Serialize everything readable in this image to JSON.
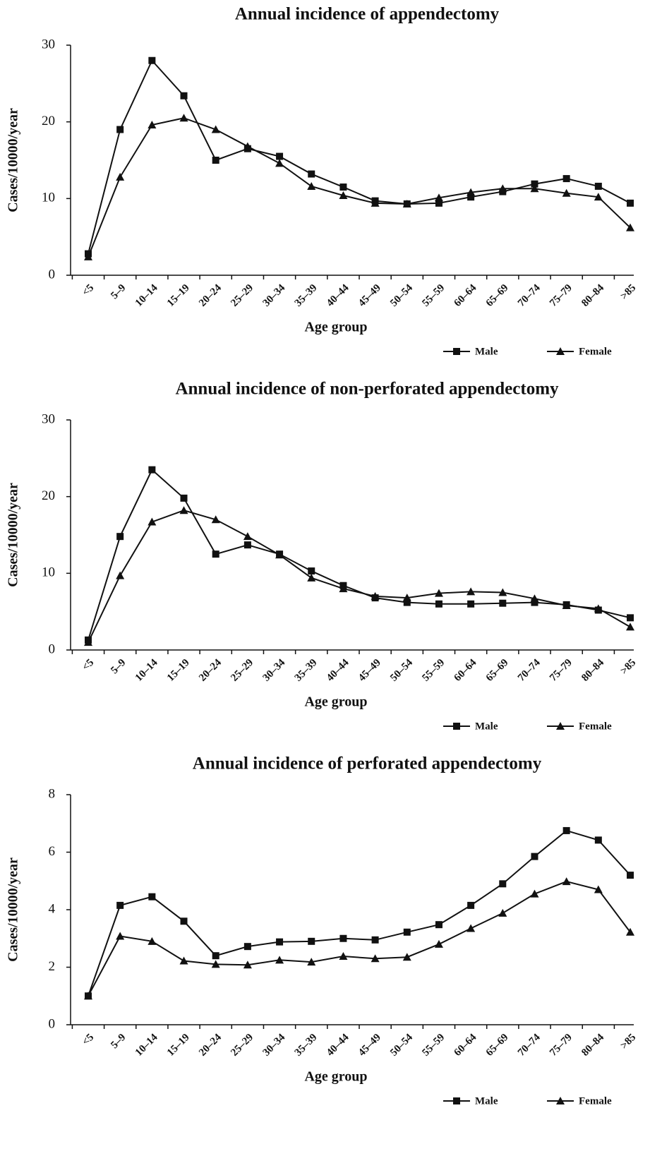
{
  "chart_data": [
    {
      "type": "line",
      "title": "Annual incidence of appendectomy",
      "x_label": "Age group",
      "y_label": "Cases/10000/year",
      "categories": [
        "<5",
        "5–9",
        "10–14",
        "15–19",
        "20–24",
        "25–29",
        "30–34",
        "35–39",
        "40–44",
        "45–49",
        "50–54",
        "55–59",
        "60–64",
        "65–69",
        "70–74",
        "75–79",
        "80–84",
        ">85"
      ],
      "ylim": [
        0,
        30
      ],
      "yticks": [
        0,
        10,
        20,
        30
      ],
      "series": [
        {
          "name": "Male",
          "color": "#111111",
          "marker": "square",
          "values": [
            2.8,
            19,
            28,
            23.4,
            15,
            16.5,
            15.5,
            13.2,
            11.5,
            9.7,
            9.3,
            9.4,
            10.2,
            10.9,
            11.9,
            12.6,
            11.6,
            9.4
          ]
        },
        {
          "name": "Female",
          "color": "#111111",
          "marker": "triangle",
          "values": [
            2.4,
            12.8,
            19.6,
            20.5,
            19,
            16.8,
            14.6,
            11.6,
            10.4,
            9.4,
            9.3,
            10.1,
            10.8,
            11.3,
            11.3,
            10.7,
            10.2,
            6.2
          ]
        }
      ]
    },
    {
      "type": "line",
      "title": "Annual incidence of non-perforated appendectomy",
      "x_label": "Age group",
      "y_label": "Cases/10000/year",
      "categories": [
        "<5",
        "5–9",
        "10–14",
        "15–19",
        "20–24",
        "25–29",
        "30–34",
        "35–39",
        "40–44",
        "45–49",
        "50–54",
        "55–59",
        "60–64",
        "65–69",
        "70–74",
        "75–79",
        "80–84",
        ">85"
      ],
      "ylim": [
        0,
        30
      ],
      "yticks": [
        0,
        10,
        20,
        30
      ],
      "series": [
        {
          "name": "Male",
          "color": "#111111",
          "marker": "square",
          "values": [
            1.3,
            14.8,
            23.5,
            19.8,
            12.5,
            13.7,
            12.5,
            10.3,
            8.4,
            6.8,
            6.2,
            6.0,
            6.0,
            6.1,
            6.2,
            5.9,
            5.2,
            4.2
          ]
        },
        {
          "name": "Female",
          "color": "#111111",
          "marker": "triangle",
          "values": [
            1.0,
            9.7,
            16.7,
            18.2,
            17.0,
            14.8,
            12.4,
            9.4,
            8.0,
            7.0,
            6.8,
            7.4,
            7.6,
            7.5,
            6.7,
            5.8,
            5.4,
            3.0
          ]
        }
      ]
    },
    {
      "type": "line",
      "title": "Annual incidence of perforated appendectomy",
      "x_label": "Age group",
      "y_label": "Cases/10000/year",
      "categories": [
        "<5",
        "5–9",
        "10–14",
        "15–19",
        "20–24",
        "25–29",
        "30–34",
        "35–39",
        "40–44",
        "45–49",
        "50–54",
        "55–59",
        "60–64",
        "65–69",
        "70–74",
        "75–79",
        "80–84",
        ">85"
      ],
      "ylim": [
        0,
        8
      ],
      "yticks": [
        0,
        2,
        4,
        6,
        8
      ],
      "series": [
        {
          "name": "Male",
          "color": "#111111",
          "marker": "square",
          "values": [
            1.0,
            4.15,
            4.45,
            3.6,
            2.4,
            2.72,
            2.88,
            2.9,
            3.0,
            2.95,
            3.22,
            3.48,
            4.15,
            4.9,
            5.85,
            6.75,
            6.42,
            5.2
          ]
        },
        {
          "name": "Female",
          "color": "#111111",
          "marker": "triangle",
          "values": [
            1.0,
            3.08,
            2.9,
            2.22,
            2.1,
            2.08,
            2.25,
            2.18,
            2.38,
            2.3,
            2.35,
            2.8,
            3.35,
            3.88,
            4.55,
            4.98,
            4.7,
            3.22
          ]
        }
      ]
    }
  ]
}
